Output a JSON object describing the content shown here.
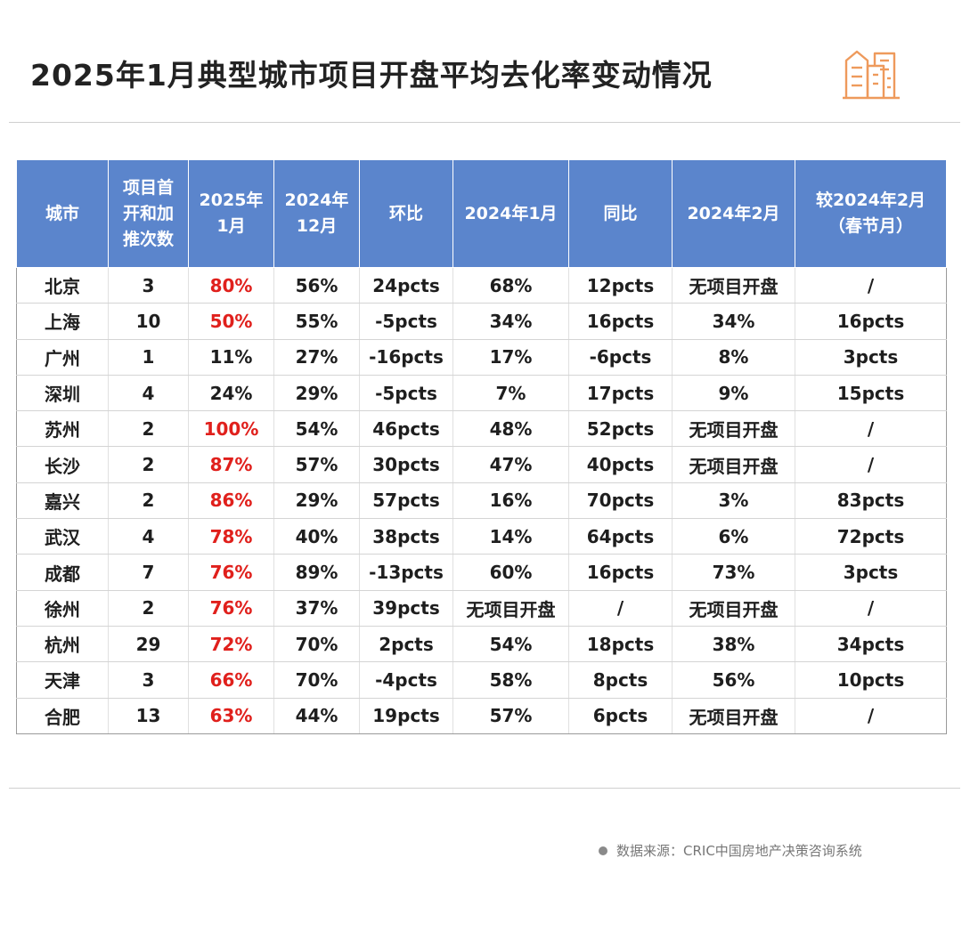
{
  "title": "2025年1月典型城市项目开盘平均去化率变动情况",
  "source": "数据来源：CRIC中国房地产决策咨询系统",
  "colors": {
    "header_bg": "#5b85cc",
    "highlight": "#e0201c",
    "logo": "#ee9a5c"
  },
  "chart_data": {
    "type": "table",
    "columns": [
      [
        "城市"
      ],
      [
        "项目首",
        "开和加",
        "推次数"
      ],
      [
        "2025年",
        "1月"
      ],
      [
        "2024年",
        "12月"
      ],
      [
        "环比"
      ],
      [
        "2024年1月"
      ],
      [
        "同比"
      ],
      [
        "2024年2月"
      ],
      [
        "较2024年2月",
        "（春节月）"
      ]
    ],
    "rows": [
      [
        "北京",
        "3",
        "80%",
        "56%",
        "24pcts",
        "68%",
        "12pcts",
        "无项目开盘",
        "/"
      ],
      [
        "上海",
        "10",
        "50%",
        "55%",
        "-5pcts",
        "34%",
        "16pcts",
        "34%",
        "16pcts"
      ],
      [
        "广州",
        "1",
        "11%",
        "27%",
        "-16pcts",
        "17%",
        "-6pcts",
        "8%",
        "3pcts"
      ],
      [
        "深圳",
        "4",
        "24%",
        "29%",
        "-5pcts",
        "7%",
        "17pcts",
        "9%",
        "15pcts"
      ],
      [
        "苏州",
        "2",
        "100%",
        "54%",
        "46pcts",
        "48%",
        "52pcts",
        "无项目开盘",
        "/"
      ],
      [
        "长沙",
        "2",
        "87%",
        "57%",
        "30pcts",
        "47%",
        "40pcts",
        "无项目开盘",
        "/"
      ],
      [
        "嘉兴",
        "2",
        "86%",
        "29%",
        "57pcts",
        "16%",
        "70pcts",
        "3%",
        "83pcts"
      ],
      [
        "武汉",
        "4",
        "78%",
        "40%",
        "38pcts",
        "14%",
        "64pcts",
        "6%",
        "72pcts"
      ],
      [
        "成都",
        "7",
        "76%",
        "89%",
        "-13pcts",
        "60%",
        "16pcts",
        "73%",
        "3pcts"
      ],
      [
        "徐州",
        "2",
        "76%",
        "37%",
        "39pcts",
        "无项目开盘",
        "/",
        "无项目开盘",
        "/"
      ],
      [
        "杭州",
        "29",
        "72%",
        "70%",
        "2pcts",
        "54%",
        "18pcts",
        "38%",
        "34pcts"
      ],
      [
        "天津",
        "3",
        "66%",
        "70%",
        "-4pcts",
        "58%",
        "8pcts",
        "56%",
        "10pcts"
      ],
      [
        "合肥",
        "13",
        "63%",
        "44%",
        "19pcts",
        "57%",
        "6pcts",
        "无项目开盘",
        "/"
      ]
    ],
    "highlight": [
      true,
      true,
      false,
      false,
      true,
      true,
      true,
      true,
      true,
      true,
      true,
      true,
      true
    ]
  }
}
